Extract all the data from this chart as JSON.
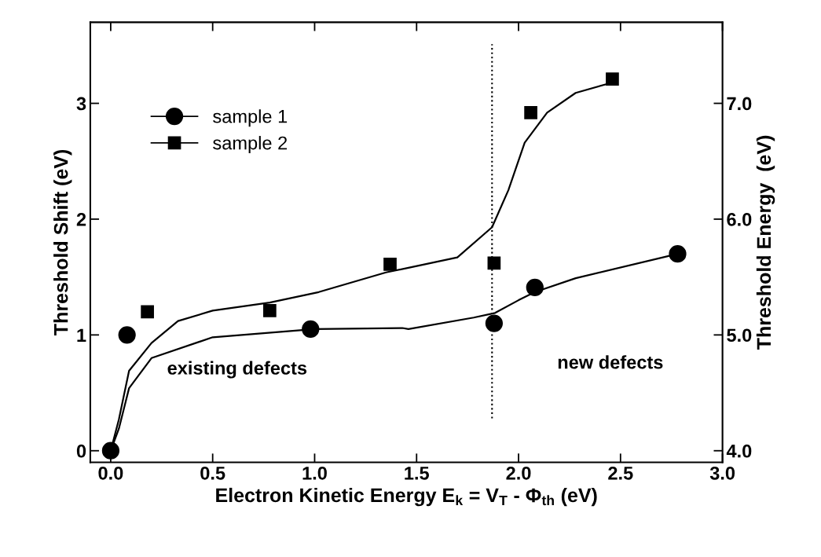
{
  "chart_data": {
    "type": "scatter",
    "xlabel": "Electron Kinetic Energy E$_{k}$ = V$_{T}$ - Φ$_{th}$ (eV)",
    "ylabel": "Threshold Shift (eV)",
    "y2label": "Threshold Energy  (eV)",
    "xlim": [
      -0.1,
      3.0
    ],
    "xticks": [
      {
        "value": 0,
        "label": "0.0"
      },
      {
        "value": 0.5,
        "label": "0.5"
      },
      {
        "value": 1.0,
        "label": "1.0"
      },
      {
        "value": 1.5,
        "label": "1.5"
      },
      {
        "value": 2.0,
        "label": "2.0"
      },
      {
        "value": 2.5,
        "label": "2.5"
      },
      {
        "value": 3.0,
        "label": "3.0"
      }
    ],
    "ylim": [
      -0.1,
      3.7
    ],
    "yticks": [
      0,
      1,
      2,
      3
    ],
    "y2lim": [
      3.9,
      7.7
    ],
    "y2ticks": [
      {
        "value": 4,
        "label": "4.0"
      },
      {
        "value": 5,
        "label": "5.0"
      },
      {
        "value": 6,
        "label": "6.0"
      },
      {
        "value": 7,
        "label": "7.0"
      }
    ],
    "series": [
      {
        "name": "sample 1",
        "marker": "circle",
        "color": "#000000",
        "x": [
          0,
          0.08,
          0.98,
          1.88,
          2.08,
          2.78
        ],
        "values": [
          0,
          1.0,
          1.05,
          1.1,
          1.41,
          1.7
        ]
      },
      {
        "name": "sample 2",
        "marker": "square",
        "color": "#000000",
        "x": [
          0.18,
          0.78,
          1.37,
          1.88,
          2.06,
          2.46
        ],
        "values": [
          1.2,
          1.21,
          1.61,
          1.62,
          2.92,
          3.21
        ]
      },
      {
        "type": "line",
        "marker": "none",
        "color": "#000000",
        "x": [
          0,
          0.04,
          0.09,
          0.2,
          0.5,
          1.0,
          1.43,
          1.46,
          1.78,
          1.885,
          2.0,
          2.08,
          2.28,
          2.78
        ],
        "values": [
          0,
          0.19,
          0.54,
          0.8,
          0.98,
          1.05,
          1.06,
          1.05,
          1.15,
          1.19,
          1.3,
          1.37,
          1.49,
          1.7
        ]
      },
      {
        "type": "line",
        "marker": "none",
        "color": "#000000",
        "x": [
          0,
          0.04,
          0.09,
          0.2,
          0.33,
          0.5,
          0.78,
          1.02,
          1.35,
          1.46,
          1.7,
          1.87,
          1.95,
          2.03,
          2.14,
          2.28,
          2.46
        ],
        "values": [
          0,
          0.27,
          0.69,
          0.93,
          1.12,
          1.21,
          1.28,
          1.37,
          1.54,
          1.58,
          1.67,
          1.93,
          2.25,
          2.66,
          2.92,
          3.09,
          3.18
        ]
      }
    ],
    "ref_lines": [
      {
        "axis": "x",
        "value": 1.87,
        "line_style": "dotted",
        "color": "#000000"
      }
    ],
    "annotations": [
      {
        "text": "existing defects"
      },
      {
        "text": "new defects"
      }
    ],
    "legend": "top left",
    "grid": false
  }
}
